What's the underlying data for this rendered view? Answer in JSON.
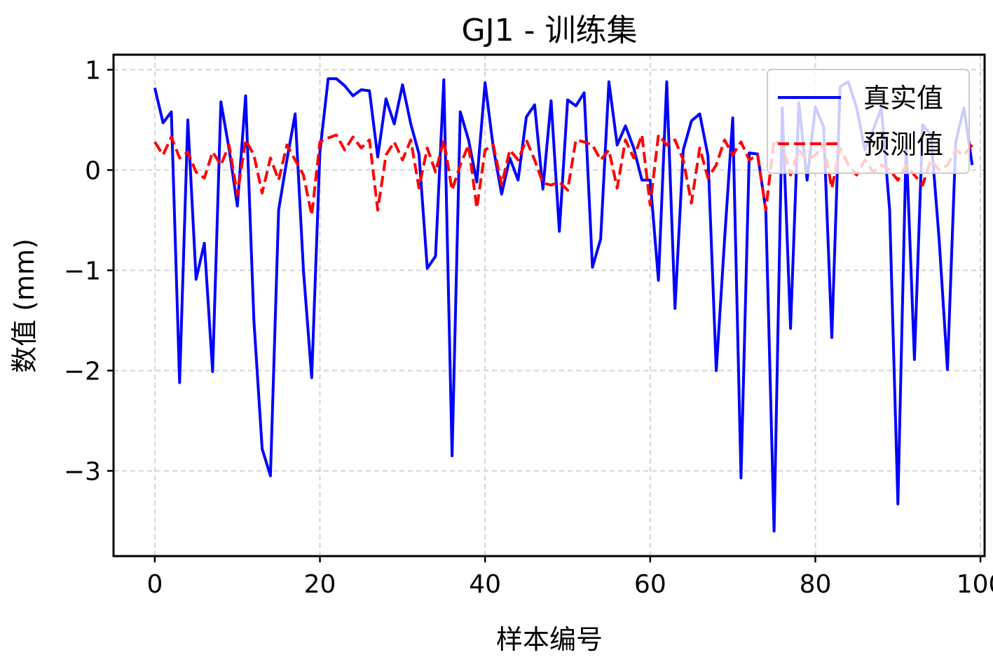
{
  "chart_data": {
    "type": "line",
    "title": "GJ1 - 训练集",
    "xlabel": "样本编号",
    "ylabel": "数值 (mm)",
    "xlim": [
      -5,
      100.5
    ],
    "ylim": [
      -3.85,
      1.15
    ],
    "xticks": [
      0,
      20,
      40,
      60,
      80,
      100
    ],
    "yticks": [
      1,
      0,
      -1,
      -2,
      -3
    ],
    "ytick_labels": [
      "1",
      "0",
      "−1",
      "−2",
      "−3"
    ],
    "grid": true,
    "legend_position": "top-right",
    "series": [
      {
        "name": "真实值",
        "color": "#0000ff",
        "style": "solid",
        "values": [
          0.82,
          0.47,
          0.58,
          -2.12,
          0.5,
          -1.09,
          -0.73,
          -2.01,
          0.68,
          0.21,
          -0.36,
          0.74,
          -1.5,
          -2.78,
          -3.05,
          -0.4,
          0.1,
          0.56,
          -1.0,
          -2.07,
          0.18,
          0.91,
          0.91,
          0.84,
          0.74,
          0.8,
          0.79,
          0.13,
          0.71,
          0.46,
          0.85,
          0.46,
          0.16,
          -0.98,
          -0.86,
          0.9,
          -2.85,
          0.58,
          0.3,
          -0.12,
          0.87,
          0.22,
          -0.24,
          0.12,
          -0.1,
          0.53,
          0.65,
          -0.19,
          0.69,
          -0.61,
          0.7,
          0.64,
          0.77,
          -0.97,
          -0.69,
          0.88,
          0.25,
          0.44,
          0.22,
          -0.1,
          -0.1,
          -1.1,
          0.88,
          -1.38,
          0.2,
          0.49,
          0.56,
          0.14,
          -2.0,
          -0.7,
          0.52,
          -3.07,
          0.17,
          0.16,
          -0.4,
          -3.6,
          0.62,
          -1.58,
          0.67,
          -0.1,
          0.63,
          0.43,
          -1.67,
          0.83,
          0.88,
          0.62,
          0.2,
          0.4,
          0.62,
          -0.4,
          -3.33,
          0.27,
          -1.89,
          0.45,
          0.35,
          -0.7,
          -1.99,
          0.28,
          0.62,
          0.05
        ]
      },
      {
        "name": "预测值",
        "color": "#ff0000",
        "style": "dashed",
        "values": [
          0.28,
          0.15,
          0.33,
          0.12,
          0.18,
          -0.02,
          -0.08,
          0.18,
          0.05,
          0.25,
          -0.25,
          0.3,
          0.15,
          -0.23,
          0.12,
          -0.1,
          0.25,
          0.1,
          -0.05,
          -0.45,
          0.28,
          0.32,
          0.35,
          0.2,
          0.33,
          0.22,
          0.3,
          -0.4,
          0.15,
          0.28,
          0.1,
          0.3,
          -0.18,
          0.22,
          -0.02,
          0.3,
          -0.2,
          0.05,
          0.25,
          -0.38,
          0.2,
          0.25,
          -0.15,
          0.2,
          0.1,
          0.3,
          0.1,
          -0.13,
          -0.15,
          -0.12,
          -0.2,
          0.3,
          0.28,
          0.25,
          0.1,
          0.2,
          -0.18,
          0.3,
          0.12,
          0.35,
          -0.35,
          0.35,
          0.25,
          0.3,
          0.1,
          -0.33,
          0.22,
          -0.08,
          0.05,
          0.3,
          0.15,
          0.28,
          0.1,
          0.15,
          -0.4,
          0.3,
          0.25,
          -0.05,
          0.2,
          0.1,
          0.15,
          0.25,
          -0.18,
          0.22,
          0.05,
          -0.05,
          0.1,
          -0.02,
          0.05,
          0.0,
          -0.1,
          0.05,
          -0.05,
          -0.15,
          0.1,
          0.0,
          0.05,
          0.2,
          0.15,
          0.25
        ]
      }
    ]
  }
}
